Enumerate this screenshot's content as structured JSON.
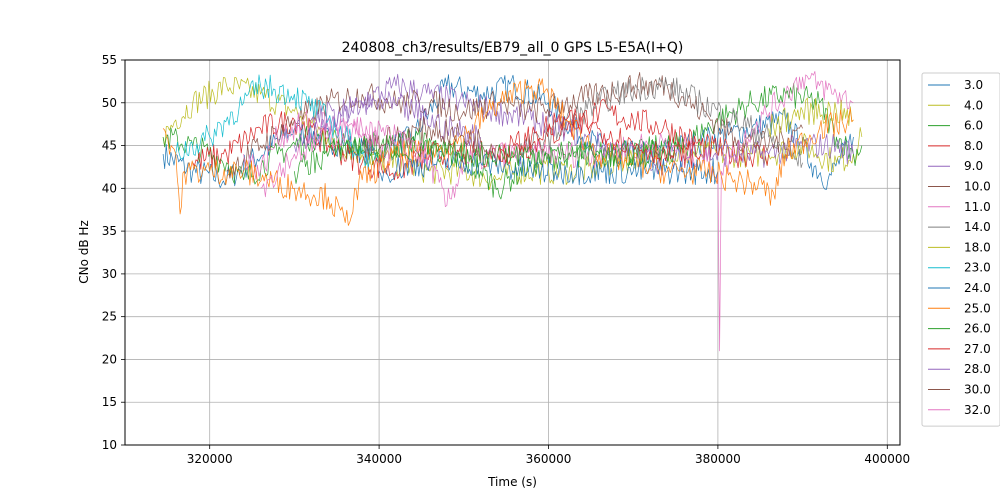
{
  "chart_data": {
    "type": "line",
    "title": "240808_ch3/results/EB79_all_0 GPS L5-E5A(I+Q)",
    "xlabel": "Time (s)",
    "ylabel": "CNo dB Hz",
    "xlim": [
      310000,
      401500
    ],
    "ylim": [
      10,
      55
    ],
    "xticks": [
      320000,
      340000,
      360000,
      380000,
      400000
    ],
    "xtick_labels": [
      "320000",
      "340000",
      "360000",
      "380000",
      "400000"
    ],
    "yticks": [
      10,
      15,
      20,
      25,
      30,
      35,
      40,
      45,
      50,
      55
    ],
    "ytick_labels": [
      "10",
      "15",
      "20",
      "25",
      "30",
      "35",
      "40",
      "45",
      "50",
      "55"
    ],
    "grid": true,
    "legend_position": "outside-right",
    "series": [
      {
        "name": "3.0",
        "color": "#1f77b4",
        "points": [
          [
            314500,
            44
          ],
          [
            318000,
            42
          ],
          [
            322000,
            41
          ],
          [
            330000,
            47
          ],
          [
            336000,
            45
          ],
          [
            340000,
            44
          ],
          [
            344000,
            46
          ],
          [
            348000,
            52
          ],
          [
            352000,
            51
          ],
          [
            356000,
            52
          ],
          [
            360000,
            50
          ],
          [
            364000,
            46
          ],
          [
            368000,
            44
          ],
          [
            372000,
            44
          ],
          [
            376000,
            45
          ],
          [
            380000,
            46
          ],
          [
            384000,
            47
          ],
          [
            388000,
            48
          ],
          [
            391000,
            43
          ],
          [
            393000,
            41
          ],
          [
            396000,
            46
          ]
        ]
      },
      {
        "name": "4.0",
        "color": "#bcbd22",
        "points": [
          [
            314500,
            46
          ],
          [
            316000,
            48
          ],
          [
            318000,
            50
          ],
          [
            322000,
            52
          ],
          [
            326000,
            51
          ],
          [
            330000,
            49
          ],
          [
            334000,
            46
          ],
          [
            338000,
            44
          ],
          [
            342000,
            43
          ],
          [
            346000,
            42
          ],
          [
            350000,
            42
          ],
          [
            354000,
            41
          ],
          [
            356000,
            42
          ],
          [
            360000,
            42
          ],
          [
            364000,
            42
          ],
          [
            368000,
            43
          ],
          [
            372000,
            44
          ],
          [
            376000,
            44
          ],
          [
            380000,
            44
          ],
          [
            384000,
            44
          ],
          [
            386000,
            44
          ],
          [
            390000,
            45
          ],
          [
            394000,
            43
          ],
          [
            396000,
            44
          ],
          [
            397000,
            46
          ]
        ]
      },
      {
        "name": "6.0",
        "color": "#2ca02c",
        "points": [
          [
            314500,
            46
          ],
          [
            318000,
            45
          ],
          [
            322000,
            43
          ],
          [
            324000,
            41
          ],
          [
            328000,
            44
          ],
          [
            332000,
            46
          ],
          [
            336000,
            45
          ],
          [
            340000,
            44
          ],
          [
            344000,
            46
          ],
          [
            348000,
            44
          ],
          [
            352000,
            42
          ],
          [
            354000,
            40
          ],
          [
            358000,
            43
          ],
          [
            362000,
            44
          ],
          [
            366000,
            44
          ],
          [
            370000,
            44
          ],
          [
            374000,
            45
          ],
          [
            376000,
            45
          ],
          [
            380000,
            48
          ],
          [
            384000,
            50
          ],
          [
            388000,
            51
          ],
          [
            392000,
            50
          ],
          [
            394000,
            46
          ],
          [
            396000,
            44
          ],
          [
            397000,
            45
          ]
        ]
      },
      {
        "name": "8.0",
        "color": "#d62728",
        "points": [
          [
            318000,
            43
          ],
          [
            322000,
            44
          ],
          [
            326000,
            47
          ],
          [
            330000,
            48
          ],
          [
            334000,
            45
          ],
          [
            338000,
            43
          ],
          [
            342000,
            42
          ],
          [
            346000,
            44
          ],
          [
            350000,
            44
          ],
          [
            354000,
            44
          ],
          [
            358000,
            45
          ],
          [
            362000,
            47
          ],
          [
            366000,
            49
          ],
          [
            370000,
            48
          ],
          [
            374000,
            47
          ],
          [
            378000,
            45
          ],
          [
            382000,
            44
          ],
          [
            386000,
            44
          ]
        ]
      },
      {
        "name": "9.0",
        "color": "#9467bd",
        "points": [
          [
            330000,
            45
          ],
          [
            334000,
            47
          ],
          [
            338000,
            50
          ],
          [
            342000,
            52
          ],
          [
            346000,
            51
          ],
          [
            350000,
            50
          ],
          [
            354000,
            49
          ],
          [
            358000,
            48
          ],
          [
            362000,
            47
          ],
          [
            366000,
            45
          ],
          [
            370000,
            44
          ],
          [
            374000,
            43
          ],
          [
            378000,
            44
          ],
          [
            382000,
            44
          ],
          [
            386000,
            44
          ],
          [
            390000,
            45
          ],
          [
            394000,
            45
          ],
          [
            396000,
            44
          ]
        ]
      },
      {
        "name": "10.0",
        "color": "#8c564b",
        "points": [
          [
            322000,
            42
          ],
          [
            326000,
            45
          ],
          [
            330000,
            48
          ],
          [
            334000,
            50
          ],
          [
            338000,
            51
          ],
          [
            342000,
            50
          ],
          [
            346000,
            50
          ],
          [
            350000,
            49
          ],
          [
            354000,
            50
          ],
          [
            358000,
            49
          ],
          [
            362000,
            50
          ],
          [
            366000,
            51
          ],
          [
            370000,
            52
          ],
          [
            374000,
            52
          ],
          [
            378000,
            49
          ],
          [
            382000,
            46
          ],
          [
            386000,
            45
          ],
          [
            390000,
            47
          ]
        ]
      },
      {
        "name": "11.0",
        "color": "#e377c2",
        "points": [
          [
            324000,
            44
          ],
          [
            326000,
            42
          ],
          [
            328000,
            46
          ],
          [
            332000,
            48
          ],
          [
            336000,
            47
          ],
          [
            340000,
            45
          ],
          [
            344000,
            44
          ],
          [
            346000,
            43
          ],
          [
            348000,
            38
          ],
          [
            350000,
            43
          ],
          [
            354000,
            44
          ],
          [
            358000,
            44
          ],
          [
            362000,
            44
          ],
          [
            366000,
            44
          ],
          [
            370000,
            45
          ],
          [
            374000,
            45
          ],
          [
            378000,
            44
          ],
          [
            380000,
            42
          ],
          [
            380200,
            21
          ],
          [
            380400,
            42
          ],
          [
            384000,
            47
          ],
          [
            388000,
            51
          ],
          [
            390000,
            53
          ],
          [
            392000,
            52
          ],
          [
            394000,
            51
          ],
          [
            396000,
            50
          ]
        ]
      },
      {
        "name": "14.0",
        "color": "#7f7f7f",
        "points": [
          [
            356000,
            44
          ],
          [
            360000,
            46
          ],
          [
            364000,
            49
          ],
          [
            368000,
            51
          ],
          [
            372000,
            52
          ],
          [
            374000,
            52
          ],
          [
            378000,
            50
          ],
          [
            382000,
            48
          ],
          [
            386000,
            46
          ],
          [
            388000,
            44
          ],
          [
            390000,
            43
          ]
        ]
      },
      {
        "name": "18.0",
        "color": "#bcbd22",
        "points": [
          [
            386000,
            47
          ],
          [
            390000,
            49
          ],
          [
            394000,
            49
          ],
          [
            396000,
            48
          ]
        ]
      },
      {
        "name": "23.0",
        "color": "#17becf",
        "points": [
          [
            316000,
            44
          ],
          [
            320000,
            46
          ],
          [
            324000,
            50
          ],
          [
            326000,
            52
          ],
          [
            330000,
            51
          ],
          [
            334000,
            48
          ],
          [
            336000,
            46
          ],
          [
            338000,
            44
          ],
          [
            340000,
            43
          ]
        ]
      },
      {
        "name": "24.0",
        "color": "#1f77b4",
        "points": [
          [
            340000,
            42
          ],
          [
            346000,
            43
          ],
          [
            352000,
            43
          ],
          [
            358000,
            42
          ],
          [
            364000,
            42
          ],
          [
            370000,
            42
          ],
          [
            376000,
            42
          ],
          [
            380000,
            42
          ]
        ]
      },
      {
        "name": "25.0",
        "color": "#ff7f0e",
        "points": [
          [
            314500,
            47
          ],
          [
            316000,
            44
          ],
          [
            316500,
            37
          ],
          [
            317000,
            42
          ],
          [
            320000,
            42
          ],
          [
            324000,
            42
          ],
          [
            330000,
            40
          ],
          [
            334000,
            39
          ],
          [
            336000,
            36
          ],
          [
            338000,
            41
          ],
          [
            342000,
            44
          ],
          [
            346000,
            44
          ],
          [
            350000,
            46
          ],
          [
            354000,
            50
          ],
          [
            358000,
            52
          ],
          [
            360000,
            51
          ],
          [
            362000,
            48
          ],
          [
            366000,
            44
          ],
          [
            370000,
            43
          ],
          [
            374000,
            42
          ],
          [
            378000,
            42
          ],
          [
            382000,
            41
          ],
          [
            386000,
            40
          ],
          [
            386200,
            38
          ],
          [
            388000,
            44
          ],
          [
            392000,
            47
          ],
          [
            396000,
            48
          ]
        ]
      },
      {
        "name": "26.0",
        "color": "#2ca02c",
        "points": [
          [
            330000,
            42
          ],
          [
            336000,
            45
          ],
          [
            342000,
            45
          ],
          [
            348000,
            44
          ],
          [
            354000,
            44
          ],
          [
            360000,
            44
          ],
          [
            366000,
            44
          ],
          [
            372000,
            44
          ],
          [
            376000,
            45
          ]
        ]
      },
      {
        "name": "27.0",
        "color": "#d62728",
        "points": [
          [
            354000,
            44
          ],
          [
            358000,
            46
          ],
          [
            362000,
            48
          ],
          [
            366000,
            47
          ],
          [
            370000,
            45
          ],
          [
            374000,
            44
          ],
          [
            378000,
            44
          ]
        ]
      },
      {
        "name": "28.0",
        "color": "#9467bd",
        "points": [
          [
            332000,
            48
          ],
          [
            336000,
            49
          ],
          [
            340000,
            50
          ],
          [
            344000,
            49
          ],
          [
            348000,
            47
          ],
          [
            352000,
            46
          ]
        ]
      },
      {
        "name": "30.0",
        "color": "#8c564b",
        "points": [
          [
            338000,
            45
          ],
          [
            342000,
            46
          ],
          [
            346000,
            47
          ],
          [
            350000,
            46
          ],
          [
            354000,
            45
          ]
        ]
      },
      {
        "name": "32.0",
        "color": "#e377c2",
        "points": [
          [
            326000,
            40
          ],
          [
            330000,
            44
          ],
          [
            334000,
            46
          ],
          [
            338000,
            47
          ],
          [
            342000,
            46
          ],
          [
            346000,
            44
          ]
        ]
      }
    ]
  }
}
